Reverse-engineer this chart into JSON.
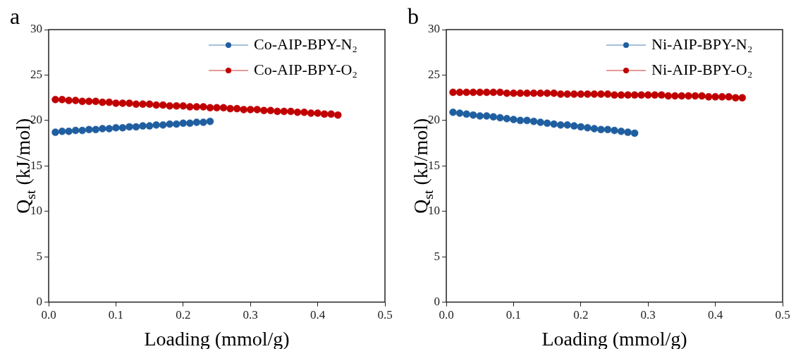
{
  "chart_data": [
    {
      "type": "scatter",
      "title": "a",
      "xlabel": "Loading (mmol/g)",
      "ylabel": "Q$_{st}$ (kJ/mol)",
      "xlim": [
        0,
        0.5
      ],
      "xticks": [
        {
          "value": 0,
          "label": "0.0"
        },
        0.1,
        0.2,
        0.3,
        0.4,
        0.5
      ],
      "ylim": [
        0,
        30
      ],
      "yticks": [
        0,
        5,
        10,
        15,
        20,
        25,
        30
      ],
      "grid": false,
      "legend": "top right",
      "marker": "circle",
      "line_style": "solid",
      "series": [
        {
          "name": "Co-AIP-BPY-N₂",
          "color": "#1f5fa0",
          "x": [
            0.01,
            0.02,
            0.03,
            0.04,
            0.05,
            0.06,
            0.07,
            0.08,
            0.09,
            0.1,
            0.11,
            0.12,
            0.13,
            0.14,
            0.15,
            0.16,
            0.17,
            0.18,
            0.19,
            0.2,
            0.21,
            0.22,
            0.23,
            0.24
          ],
          "values": [
            18.7,
            18.8,
            18.8,
            18.9,
            18.9,
            19.0,
            19.0,
            19.1,
            19.1,
            19.2,
            19.2,
            19.3,
            19.3,
            19.4,
            19.4,
            19.5,
            19.5,
            19.6,
            19.6,
            19.7,
            19.7,
            19.8,
            19.8,
            19.9
          ]
        },
        {
          "name": "Co-AIP-BPY-O₂",
          "color": "#c00000",
          "x": [
            0.01,
            0.02,
            0.03,
            0.04,
            0.05,
            0.06,
            0.07,
            0.08,
            0.09,
            0.1,
            0.11,
            0.12,
            0.13,
            0.14,
            0.15,
            0.16,
            0.17,
            0.18,
            0.19,
            0.2,
            0.21,
            0.22,
            0.23,
            0.24,
            0.25,
            0.26,
            0.27,
            0.28,
            0.29,
            0.3,
            0.31,
            0.32,
            0.33,
            0.34,
            0.35,
            0.36,
            0.37,
            0.38,
            0.39,
            0.4,
            0.41,
            0.42,
            0.43
          ],
          "values": [
            22.3,
            22.3,
            22.2,
            22.2,
            22.1,
            22.1,
            22.1,
            22.0,
            22.0,
            21.9,
            21.9,
            21.9,
            21.8,
            21.8,
            21.8,
            21.7,
            21.7,
            21.6,
            21.6,
            21.6,
            21.5,
            21.5,
            21.5,
            21.4,
            21.4,
            21.4,
            21.3,
            21.3,
            21.2,
            21.2,
            21.2,
            21.1,
            21.1,
            21.0,
            21.0,
            21.0,
            20.9,
            20.9,
            20.8,
            20.8,
            20.7,
            20.7,
            20.6
          ]
        }
      ]
    },
    {
      "type": "scatter",
      "title": "b",
      "xlabel": "Loading (mmol/g)",
      "ylabel": "Q$_{st}$ (kJ/mol)",
      "xlim": [
        0,
        0.5
      ],
      "xticks": [
        {
          "value": 0,
          "label": "0.0"
        },
        0.1,
        0.2,
        0.3,
        0.4,
        0.5
      ],
      "ylim": [
        0,
        30
      ],
      "yticks": [
        0,
        5,
        10,
        15,
        20,
        25,
        30
      ],
      "grid": false,
      "legend": "top right",
      "marker": "circle",
      "line_style": "solid",
      "series": [
        {
          "name": "Ni-AIP-BPY-N₂",
          "color": "#1f5fa0",
          "x": [
            0.01,
            0.02,
            0.03,
            0.04,
            0.05,
            0.06,
            0.07,
            0.08,
            0.09,
            0.1,
            0.11,
            0.12,
            0.13,
            0.14,
            0.15,
            0.16,
            0.17,
            0.18,
            0.19,
            0.2,
            0.21,
            0.22,
            0.23,
            0.24,
            0.25,
            0.26,
            0.27,
            0.28
          ],
          "values": [
            20.9,
            20.8,
            20.7,
            20.6,
            20.5,
            20.5,
            20.4,
            20.3,
            20.2,
            20.1,
            20.0,
            20.0,
            19.9,
            19.8,
            19.7,
            19.6,
            19.5,
            19.5,
            19.4,
            19.3,
            19.2,
            19.1,
            19.0,
            19.0,
            18.9,
            18.8,
            18.7,
            18.6
          ]
        },
        {
          "name": "Ni-AIP-BPY-O₂",
          "color": "#c00000",
          "x": [
            0.01,
            0.02,
            0.03,
            0.04,
            0.05,
            0.06,
            0.07,
            0.08,
            0.09,
            0.1,
            0.11,
            0.12,
            0.13,
            0.14,
            0.15,
            0.16,
            0.17,
            0.18,
            0.19,
            0.2,
            0.21,
            0.22,
            0.23,
            0.24,
            0.25,
            0.26,
            0.27,
            0.28,
            0.29,
            0.3,
            0.31,
            0.32,
            0.33,
            0.34,
            0.35,
            0.36,
            0.37,
            0.38,
            0.39,
            0.4,
            0.41,
            0.42,
            0.43,
            0.44
          ],
          "values": [
            23.1,
            23.1,
            23.1,
            23.1,
            23.1,
            23.1,
            23.1,
            23.1,
            23.0,
            23.0,
            23.0,
            23.0,
            23.0,
            23.0,
            23.0,
            23.0,
            22.9,
            22.9,
            22.9,
            22.9,
            22.9,
            22.9,
            22.9,
            22.9,
            22.8,
            22.8,
            22.8,
            22.8,
            22.8,
            22.8,
            22.8,
            22.8,
            22.7,
            22.7,
            22.7,
            22.7,
            22.7,
            22.7,
            22.6,
            22.6,
            22.6,
            22.6,
            22.5,
            22.5
          ]
        }
      ]
    }
  ]
}
